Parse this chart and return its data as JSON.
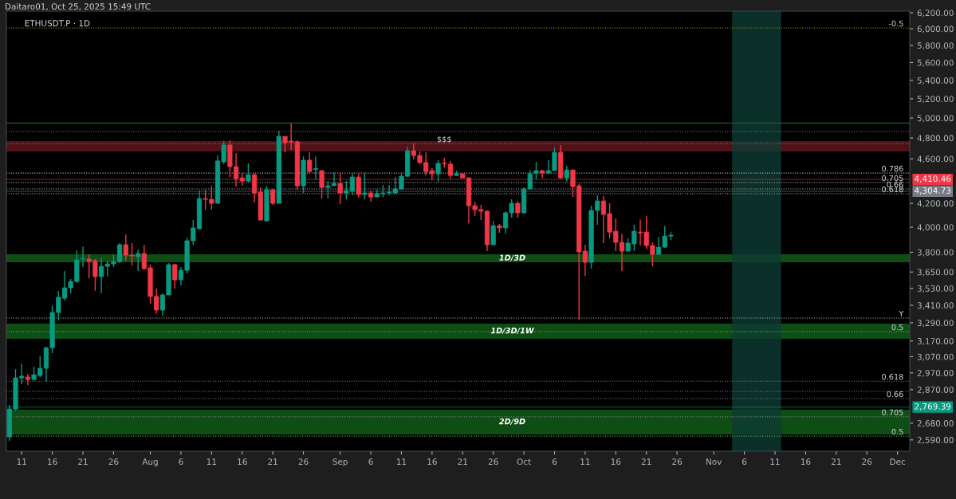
{
  "chart_data": {
    "type": "candlestick",
    "title": "ETHUSDT.P · 1D",
    "annotations": [
      "Daitaro01, Oct 25, 2025 15:49 UTC",
      {
        "text": "$$$",
        "x": "2025-09-18",
        "y": 4746
      },
      {
        "text": "Y",
        "x": "2025-12-02",
        "y": 3322
      },
      {
        "text": "-0.5",
        "x": "2025-12-02",
        "y": 6010
      },
      {
        "text": "0.786",
        "x": "2025-12-02",
        "y": 4468
      },
      {
        "text": "0.705",
        "x": "2025-12-02",
        "y": 4382
      },
      {
        "text": "0.66",
        "x": "2025-12-02",
        "y": 4325
      },
      {
        "text": "0.618",
        "x": "2025-12-02",
        "y": 4283
      },
      {
        "text": "0.5",
        "x": "2025-12-02",
        "y": 3231
      },
      {
        "text": "0.618",
        "x": "2025-12-02",
        "y": 2920
      },
      {
        "text": "0.66",
        "x": "2025-12-02",
        "y": 2818
      },
      {
        "text": "0.705",
        "x": "2025-12-02",
        "y": 2715
      },
      {
        "text": "0.5",
        "x": "2025-12-02",
        "y": 2610
      }
    ],
    "x": [
      "2025-07-09",
      "2025-07-10",
      "2025-07-11",
      "2025-07-12",
      "2025-07-13",
      "2025-07-14",
      "2025-07-15",
      "2025-07-16",
      "2025-07-17",
      "2025-07-18",
      "2025-07-19",
      "2025-07-20",
      "2025-07-21",
      "2025-07-22",
      "2025-07-23",
      "2025-07-24",
      "2025-07-25",
      "2025-07-26",
      "2025-07-27",
      "2025-07-28",
      "2025-07-29",
      "2025-07-30",
      "2025-07-31",
      "2025-08-01",
      "2025-08-02",
      "2025-08-03",
      "2025-08-04",
      "2025-08-05",
      "2025-08-06",
      "2025-08-07",
      "2025-08-08",
      "2025-08-09",
      "2025-08-10",
      "2025-08-11",
      "2025-08-12",
      "2025-08-13",
      "2025-08-14",
      "2025-08-15",
      "2025-08-16",
      "2025-08-17",
      "2025-08-18",
      "2025-08-19",
      "2025-08-20",
      "2025-08-21",
      "2025-08-22",
      "2025-08-23",
      "2025-08-24",
      "2025-08-25",
      "2025-08-26",
      "2025-08-27",
      "2025-08-28",
      "2025-08-29",
      "2025-08-30",
      "2025-08-31",
      "2025-09-01",
      "2025-09-02",
      "2025-09-03",
      "2025-09-04",
      "2025-09-05",
      "2025-09-06",
      "2025-09-07",
      "2025-09-08",
      "2025-09-09",
      "2025-09-10",
      "2025-09-11",
      "2025-09-12",
      "2025-09-13",
      "2025-09-14",
      "2025-09-15",
      "2025-09-16",
      "2025-09-17",
      "2025-09-18",
      "2025-09-19",
      "2025-09-20",
      "2025-09-21",
      "2025-09-22",
      "2025-09-23",
      "2025-09-24",
      "2025-09-25",
      "2025-09-26",
      "2025-09-27",
      "2025-09-28",
      "2025-09-29",
      "2025-09-30",
      "2025-10-01",
      "2025-10-02",
      "2025-10-03",
      "2025-10-04",
      "2025-10-05",
      "2025-10-06",
      "2025-10-07",
      "2025-10-08",
      "2025-10-09",
      "2025-10-10",
      "2025-10-11",
      "2025-10-12",
      "2025-10-13",
      "2025-10-14",
      "2025-10-15",
      "2025-10-16",
      "2025-10-17",
      "2025-10-18",
      "2025-10-19",
      "2025-10-20",
      "2025-10-21",
      "2025-10-22",
      "2025-10-23",
      "2025-10-24",
      "2025-10-25"
    ],
    "ohlc": [
      [
        2606,
        2782,
        2585,
        2759
      ],
      [
        2759,
        2992,
        2750,
        2940
      ],
      [
        2940,
        3027,
        2902,
        2950
      ],
      [
        2945,
        2964,
        2897,
        2930
      ],
      [
        2930,
        3008,
        2925,
        2959
      ],
      [
        2954,
        3072,
        2945,
        2998
      ],
      [
        2998,
        3132,
        2920,
        3127
      ],
      [
        3127,
        3410,
        3092,
        3360
      ],
      [
        3360,
        3512,
        3306,
        3466
      ],
      [
        3460,
        3657,
        3443,
        3534
      ],
      [
        3534,
        3598,
        3494,
        3580
      ],
      [
        3580,
        3815,
        3570,
        3741
      ],
      [
        3748,
        3846,
        3687,
        3752
      ],
      [
        3748,
        3784,
        3604,
        3729
      ],
      [
        3735,
        3748,
        3512,
        3616
      ],
      [
        3616,
        3754,
        3494,
        3693
      ],
      [
        3693,
        3735,
        3616,
        3711
      ],
      [
        3711,
        3784,
        3687,
        3729
      ],
      [
        3729,
        3872,
        3717,
        3859
      ],
      [
        3859,
        3941,
        3735,
        3778
      ],
      [
        3778,
        3872,
        3699,
        3772
      ],
      [
        3766,
        3822,
        3657,
        3790
      ],
      [
        3790,
        3859,
        3669,
        3675
      ],
      [
        3681,
        3705,
        3420,
        3472
      ],
      [
        3472,
        3529,
        3354,
        3377
      ],
      [
        3377,
        3494,
        3338,
        3483
      ],
      [
        3483,
        3717,
        3483,
        3705
      ],
      [
        3705,
        3711,
        3529,
        3592
      ],
      [
        3592,
        3687,
        3552,
        3663
      ],
      [
        3663,
        3916,
        3639,
        3891
      ],
      [
        3891,
        4059,
        3859,
        3994
      ],
      [
        3987,
        4311,
        3987,
        4241
      ],
      [
        4241,
        4318,
        4146,
        4234
      ],
      [
        4234,
        4353,
        4146,
        4200
      ],
      [
        4200,
        4631,
        4200,
        4580
      ],
      [
        4572,
        4770,
        4550,
        4731
      ],
      [
        4731,
        4778,
        4431,
        4527
      ],
      [
        4527,
        4654,
        4346,
        4417
      ],
      [
        4424,
        4468,
        4353,
        4396
      ],
      [
        4396,
        4557,
        4382,
        4453
      ],
      [
        4453,
        4461,
        4207,
        4290
      ],
      [
        4297,
        4339,
        4059,
        4059
      ],
      [
        4052,
        4353,
        4045,
        4318
      ],
      [
        4318,
        4318,
        4187,
        4200
      ],
      [
        4200,
        4871,
        4200,
        4816
      ],
      [
        4816,
        4816,
        4661,
        4754
      ],
      [
        4770,
        4949,
        4684,
        4760
      ],
      [
        4762,
        4778,
        4318,
        4353
      ],
      [
        4353,
        4623,
        4290,
        4587
      ],
      [
        4587,
        4661,
        4461,
        4482
      ],
      [
        4500,
        4623,
        4410,
        4510
      ],
      [
        4490,
        4490,
        4241,
        4339
      ],
      [
        4339,
        4396,
        4241,
        4353
      ],
      [
        4353,
        4475,
        4353,
        4374
      ],
      [
        4374,
        4475,
        4193,
        4290
      ],
      [
        4290,
        4396,
        4234,
        4311
      ],
      [
        4304,
        4468,
        4269,
        4431
      ],
      [
        4431,
        4461,
        4248,
        4276
      ],
      [
        4276,
        4468,
        4234,
        4290
      ],
      [
        4290,
        4311,
        4213,
        4255
      ],
      [
        4255,
        4318,
        4255,
        4283
      ],
      [
        4283,
        4360,
        4255,
        4290
      ],
      [
        4290,
        4360,
        4269,
        4297
      ],
      [
        4290,
        4431,
        4283,
        4325
      ],
      [
        4325,
        4468,
        4318,
        4439
      ],
      [
        4439,
        4716,
        4431,
        4676
      ],
      [
        4676,
        4746,
        4594,
        4631
      ],
      [
        4631,
        4669,
        4550,
        4565
      ],
      [
        4565,
        4661,
        4446,
        4482
      ],
      [
        4490,
        4512,
        4404,
        4461
      ],
      [
        4461,
        4587,
        4389,
        4557
      ],
      [
        4560,
        4609,
        4519,
        4555
      ],
      [
        4550,
        4580,
        4417,
        4446
      ],
      [
        4446,
        4490,
        4439,
        4461
      ],
      [
        4461,
        4461,
        4424,
        4424
      ],
      [
        4424,
        4431,
        4032,
        4180
      ],
      [
        4180,
        4213,
        4092,
        4146
      ],
      [
        4146,
        4187,
        4059,
        4133
      ],
      [
        4133,
        4139,
        3809,
        3859
      ],
      [
        3859,
        4052,
        3859,
        4012
      ],
      [
        4012,
        4026,
        3954,
        3994
      ],
      [
        3994,
        4133,
        3947,
        4119
      ],
      [
        4119,
        4234,
        4079,
        4200
      ],
      [
        4200,
        4220,
        4079,
        4119
      ],
      [
        4119,
        4339,
        4112,
        4325
      ],
      [
        4325,
        4497,
        4318,
        4461
      ],
      [
        4468,
        4572,
        4410,
        4490
      ],
      [
        4490,
        4497,
        4424,
        4468
      ],
      [
        4468,
        4587,
        4461,
        4490
      ],
      [
        4490,
        4708,
        4490,
        4661
      ],
      [
        4661,
        4731,
        4417,
        4424
      ],
      [
        4424,
        4535,
        4389,
        4497
      ],
      [
        4497,
        4497,
        4255,
        4346
      ],
      [
        4353,
        4374,
        3311,
        3803
      ],
      [
        3809,
        3859,
        3622,
        3723
      ],
      [
        3723,
        4180,
        3675,
        4139
      ],
      [
        4139,
        4269,
        4019,
        4220
      ],
      [
        4220,
        4262,
        3872,
        4106
      ],
      [
        4112,
        4200,
        3910,
        3960
      ],
      [
        3967,
        4072,
        3809,
        3878
      ],
      [
        3878,
        3947,
        3657,
        3809
      ],
      [
        3809,
        3910,
        3809,
        3872
      ],
      [
        3866,
        4019,
        3809,
        3967
      ],
      [
        3960,
        4065,
        3853,
        3954
      ],
      [
        3960,
        4092,
        3828,
        3853
      ],
      [
        3853,
        3878,
        3693,
        3784
      ],
      [
        3784,
        3922,
        3784,
        3840
      ],
      [
        3840,
        4012,
        3834,
        3928
      ],
      [
        3928,
        3960,
        3897,
        3935
      ]
    ],
    "xlim": [
      "2025-07-08T12:00",
      "2025-12-03T00:00"
    ],
    "xticks": [
      {
        "value": "2025-07-11",
        "label": "11"
      },
      {
        "value": "2025-07-16",
        "label": "16"
      },
      {
        "value": "2025-07-21",
        "label": "21"
      },
      {
        "value": "2025-07-26",
        "label": "26"
      },
      {
        "value": "2025-08-01",
        "label": "Aug"
      },
      {
        "value": "2025-08-06",
        "label": "6"
      },
      {
        "value": "2025-08-11",
        "label": "11"
      },
      {
        "value": "2025-08-16",
        "label": "16"
      },
      {
        "value": "2025-08-21",
        "label": "21"
      },
      {
        "value": "2025-08-26",
        "label": "26"
      },
      {
        "value": "2025-09-01",
        "label": "Sep"
      },
      {
        "value": "2025-09-06",
        "label": "6"
      },
      {
        "value": "2025-09-11",
        "label": "11"
      },
      {
        "value": "2025-09-16",
        "label": "16"
      },
      {
        "value": "2025-09-21",
        "label": "21"
      },
      {
        "value": "2025-09-26",
        "label": "26"
      },
      {
        "value": "2025-10-01",
        "label": "Oct"
      },
      {
        "value": "2025-10-06",
        "label": "6"
      },
      {
        "value": "2025-10-11",
        "label": "11"
      },
      {
        "value": "2025-10-16",
        "label": "16"
      },
      {
        "value": "2025-10-21",
        "label": "21"
      },
      {
        "value": "2025-10-26",
        "label": "26"
      },
      {
        "value": "2025-11-01",
        "label": "Nov"
      },
      {
        "value": "2025-11-06",
        "label": "6"
      },
      {
        "value": "2025-11-11",
        "label": "11"
      },
      {
        "value": "2025-11-16",
        "label": "16"
      },
      {
        "value": "2025-11-21",
        "label": "21"
      },
      {
        "value": "2025-11-26",
        "label": "26"
      },
      {
        "value": "2025-12-01",
        "label": "Dec"
      }
    ],
    "log": "y",
    "ylim": [
      2531,
      6220
    ],
    "yticks": [
      {
        "value": 6200,
        "label": "6,200.00"
      },
      {
        "value": 6000,
        "label": "6,000.00"
      },
      {
        "value": 5800,
        "label": "5,800.00"
      },
      {
        "value": 5600,
        "label": "5,600.00"
      },
      {
        "value": 5400,
        "label": "5,400.00"
      },
      {
        "value": 5200,
        "label": "5,200.00"
      },
      {
        "value": 5000,
        "label": "5,000.00"
      },
      {
        "value": 4800,
        "label": "4,800.00"
      },
      {
        "value": 4600,
        "label": "4,600.00"
      },
      {
        "value": 4200,
        "label": "4,200.00"
      },
      {
        "value": 4000,
        "label": "4,000.00"
      },
      {
        "value": 3800,
        "label": "3,800.00"
      },
      {
        "value": 3650,
        "label": "3,650.00"
      },
      {
        "value": 3530,
        "label": "3,530.00"
      },
      {
        "value": 3410,
        "label": "3,410.00"
      },
      {
        "value": 3290,
        "label": "3,290.00"
      },
      {
        "value": 3170,
        "label": "3,170.00"
      },
      {
        "value": 3070,
        "label": "3,070.00"
      },
      {
        "value": 2970,
        "label": "2,970.00"
      },
      {
        "value": 2870,
        "label": "2,870.00"
      },
      {
        "value": 2680,
        "label": "2,680.00"
      },
      {
        "value": 2590,
        "label": "2,590.00"
      }
    ],
    "ref_lines": [
      {
        "axis": "y",
        "value": 6010,
        "color": "#808000",
        "line_style": "dotted"
      },
      {
        "axis": "y",
        "value": 4949,
        "color": "#1b5e20",
        "line_style": "solid"
      },
      {
        "axis": "y",
        "value": 4864,
        "color": "#787b86",
        "line_style": "dotted"
      },
      {
        "axis": "y",
        "value": 4746,
        "color": "#787b86",
        "line_style": "dotted"
      },
      {
        "axis": "y",
        "value": 4410.46,
        "label": "4,410.46",
        "color": "#f23645",
        "line_style": "solid"
      },
      {
        "axis": "y",
        "value": 4304.73,
        "label": "4,304.73",
        "color": "#787b86",
        "line_style": "solid"
      },
      {
        "axis": "y",
        "value": 2769.39,
        "label": "2,769.39",
        "color": "#089981",
        "line_style": "solid"
      },
      {
        "axis": "y",
        "value": 4468,
        "color": "#b2b5be",
        "line_style": "dotted"
      },
      {
        "axis": "y",
        "value": 4382,
        "color": "#b2b5be",
        "line_style": "dotted"
      },
      {
        "axis": "y",
        "value": 4325,
        "color": "#b2b5be",
        "line_style": "dotted"
      },
      {
        "axis": "y",
        "value": 4283,
        "color": "#b2b5be",
        "line_style": "dotted"
      },
      {
        "axis": "y",
        "value": 3322,
        "color": "#b2b5be",
        "line_style": "dotted"
      },
      {
        "axis": "y",
        "value": 3231,
        "color": "#4caf50",
        "line_style": "dotted"
      },
      {
        "axis": "y",
        "value": 2920,
        "color": "#787b86",
        "line_style": "dotted"
      },
      {
        "axis": "y",
        "value": 2860,
        "color": "#787b86",
        "line_style": "dotted"
      },
      {
        "axis": "y",
        "value": 2818,
        "color": "#787b86",
        "line_style": "dotted"
      },
      {
        "axis": "y",
        "value": 2715,
        "color": "#787b86",
        "line_style": "dotted"
      },
      {
        "axis": "y",
        "value": 2610,
        "color": "#4caf50",
        "line_style": "dotted"
      }
    ],
    "bands": [
      {
        "axis": "y",
        "from": 4669,
        "to": 4770,
        "color": "#b22833"
      },
      {
        "axis": "y",
        "from": 3723,
        "to": 3784,
        "label": "1D/3D",
        "color": "#1faa2a"
      },
      {
        "axis": "y",
        "from": 3184,
        "to": 3285,
        "label": "1D/3D/1W",
        "color": "#1faa2a"
      },
      {
        "axis": "y",
        "from": 2619,
        "to": 2755,
        "label": "2D/9D",
        "color": "#1faa2a"
      },
      {
        "axis": "x",
        "from": "2025-11-04",
        "to": "2025-11-12",
        "color": "#0e3b33"
      }
    ]
  }
}
